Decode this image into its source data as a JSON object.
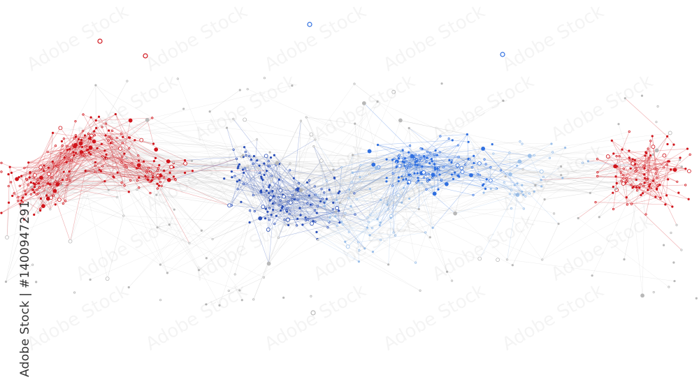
{
  "image": {
    "description_colors": {
      "red": "#d0141b",
      "dark_blue": "#2a4fb8",
      "blue": "#2f6fe0",
      "light_blue": "#9cc0ea",
      "gray_edge": "#b8b8b8"
    }
  },
  "credit": {
    "brand": "Adobe Stock",
    "separator": "|",
    "id": "#1400947291"
  },
  "watermark": {
    "text": "Adobe Stock"
  }
}
